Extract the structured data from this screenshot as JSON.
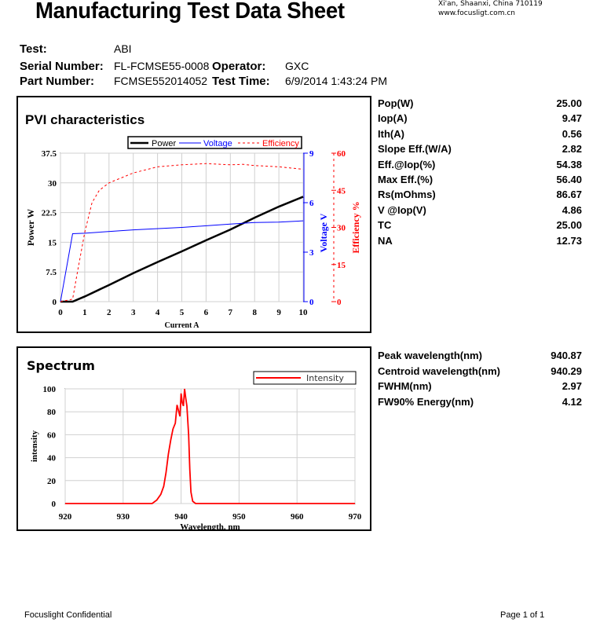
{
  "header": {
    "title": "Manufacturing Test Data Sheet",
    "address": "Xi'an, Shaanxi, China  710119",
    "website": "www.focusligt.com.cn"
  },
  "info": {
    "test_label": "Test:",
    "test_value": "ABI",
    "serial_label": "Serial Number:",
    "serial_value": "FL-FCMSE55-0008",
    "part_label": "Part Number:",
    "part_value": "FCMSE552014052",
    "operator_label": "Operator:",
    "operator_value": "GXC",
    "time_label": "Test Time:",
    "time_value": "6/9/2014  1:43:24 PM"
  },
  "pvi_params": [
    {
      "label": "Pop(W)",
      "value": "25.00"
    },
    {
      "label": "Iop(A)",
      "value": "9.47"
    },
    {
      "label": "Ith(A)",
      "value": "0.56"
    },
    {
      "label": "Slope Eff.(W/A)",
      "value": "2.82"
    },
    {
      "label": "Eff.@Iop(%)",
      "value": "54.38"
    },
    {
      "label": "Max Eff.(%)",
      "value": "56.40"
    },
    {
      "label": "Rs(mOhms)",
      "value": "86.67"
    },
    {
      "label": "V @Iop(V)",
      "value": "4.86"
    },
    {
      "label": "TC",
      "value": "25.00"
    },
    {
      "label": "NA",
      "value": "12.73"
    }
  ],
  "spectrum_params": [
    {
      "label": "Peak wavelength(nm)",
      "value": "940.87"
    },
    {
      "label": "Centroid wavelength(nm)",
      "value": "940.29"
    },
    {
      "label": "FWHM(nm)",
      "value": "2.97"
    },
    {
      "label": "FW90% Energy(nm)",
      "value": "4.12"
    }
  ],
  "colors": {
    "power": "#000000",
    "voltage": "#0000ff",
    "efficiency": "#ff0000",
    "grid": "#d0d0d0"
  },
  "chart_data": [
    {
      "type": "line",
      "title": "PVI characteristics",
      "xlabel": "Current A",
      "ylabel": "Power W",
      "y2label": "Voltage V",
      "y3label": "Efficiency %",
      "xlim": [
        0,
        10
      ],
      "ylim": [
        0,
        37.5
      ],
      "y2lim": [
        0,
        9
      ],
      "y3lim": [
        0,
        60
      ],
      "xticks": [
        "0",
        "1",
        "2",
        "3",
        "4",
        "5",
        "6",
        "7",
        "8",
        "9",
        "10"
      ],
      "yticks": [
        "0",
        "7.5",
        "15",
        "22.5",
        "30",
        "37.5"
      ],
      "y2ticks": [
        "0",
        "3",
        "6",
        "9"
      ],
      "y3ticks": [
        "0",
        "15",
        "30",
        "45",
        "60"
      ],
      "legend": [
        "Power",
        "Voltage",
        "Efficiency"
      ],
      "legend_position": "top",
      "series": [
        {
          "name": "Power",
          "axis": "y",
          "x": [
            0,
            0.5,
            1,
            2,
            3,
            4,
            5,
            6,
            7,
            8,
            9,
            10
          ],
          "y": [
            0,
            0,
            1.3,
            4.2,
            7.2,
            10,
            12.7,
            15.5,
            18.2,
            21.2,
            24,
            26.5
          ]
        },
        {
          "name": "Voltage",
          "axis": "y2",
          "x": [
            0,
            0.5,
            1,
            3,
            5,
            7,
            8,
            9,
            10
          ],
          "y": [
            0,
            4.12,
            4.15,
            4.35,
            4.5,
            4.7,
            4.8,
            4.82,
            4.9
          ]
        },
        {
          "name": "Efficiency",
          "axis": "y3",
          "x": [
            0,
            0.5,
            0.7,
            1,
            1.3,
            1.6,
            2,
            3,
            4,
            5,
            6,
            7,
            7.5,
            8,
            9,
            10
          ],
          "y": [
            0,
            1,
            12,
            28,
            40,
            45,
            48,
            52,
            54.5,
            55.3,
            55.8,
            55.3,
            55.5,
            55,
            54.5,
            53.5
          ]
        }
      ]
    },
    {
      "type": "line",
      "title": "Spectrum",
      "xlabel": "Wavelength, nm",
      "ylabel": "intensity",
      "xlim": [
        920,
        970
      ],
      "ylim": [
        0,
        100
      ],
      "xticks": [
        "920",
        "930",
        "940",
        "950",
        "960",
        "970"
      ],
      "yticks": [
        "0",
        "20",
        "40",
        "60",
        "80",
        "100"
      ],
      "legend": [
        "Intensity"
      ],
      "legend_position": "top-right",
      "series": [
        {
          "name": "Intensity",
          "x": [
            920,
            935,
            935.8,
            936.5,
            937,
            937.4,
            937.8,
            938.2,
            938.6,
            939,
            939.3,
            939.6,
            939.8,
            940,
            940.2,
            940.4,
            940.6,
            940.8,
            941,
            941.3,
            941.5,
            941.7,
            942,
            942.5,
            970
          ],
          "y": [
            0,
            0,
            3,
            8,
            15,
            27,
            43,
            55,
            65,
            70,
            86,
            80,
            76,
            96,
            88,
            85,
            100,
            92,
            85,
            60,
            30,
            10,
            2,
            0,
            0
          ]
        }
      ]
    }
  ],
  "footer": {
    "left": "Focuslight Confidential",
    "right": "Page 1 of 1"
  }
}
